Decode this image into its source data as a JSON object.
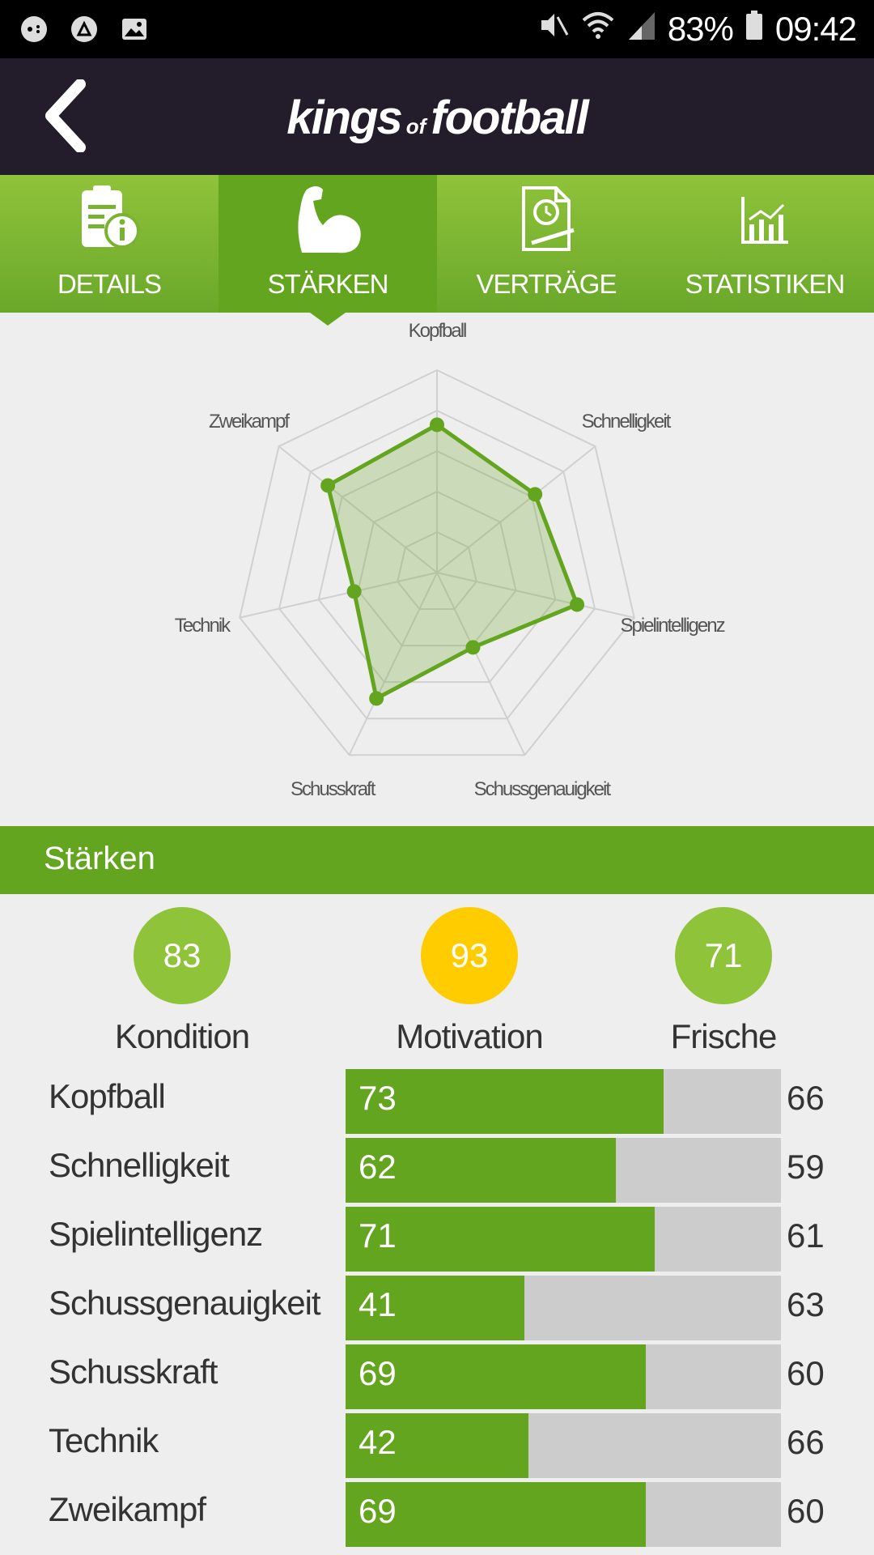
{
  "status_bar": {
    "battery": "83%",
    "time": "09:42",
    "icons": [
      "gamepad-icon",
      "soccer-icon",
      "image-icon",
      "mute-icon",
      "wifi-icon",
      "signal-icon",
      "battery-icon"
    ]
  },
  "header": {
    "logo_part1": "kings",
    "logo_part2": "of",
    "logo_part3": "football",
    "back_icon": "chevron-left-icon"
  },
  "tabs": [
    {
      "label": "DETAILS",
      "icon": "document-info-icon",
      "active": false
    },
    {
      "label": "STÄRKEN",
      "icon": "flexed-arm-icon",
      "active": true
    },
    {
      "label": "VERTRÄGE",
      "icon": "contract-icon",
      "active": false
    },
    {
      "label": "STATISTIKEN",
      "icon": "chart-icon",
      "active": false
    }
  ],
  "radar": {
    "labels": [
      "Kopfball",
      "Schnelligkeit",
      "Spielintelligenz",
      "Schussgenauigkeit",
      "Schusskraft",
      "Technik",
      "Zweikampf"
    ],
    "values": [
      73,
      62,
      71,
      41,
      69,
      42,
      69
    ],
    "max": 100,
    "colors": {
      "fill": "#64a51f",
      "grid": "#d0d0d0"
    }
  },
  "section": {
    "title": "Stärken"
  },
  "summary": [
    {
      "value": "83",
      "label": "Kondition",
      "color": "#8fc33a"
    },
    {
      "value": "93",
      "label": "Motivation",
      "color": "#ffcc00"
    },
    {
      "value": "71",
      "label": "Frische",
      "color": "#8fc33a"
    }
  ],
  "attributes": [
    {
      "name": "Kopfball",
      "value": 73,
      "compare": "66"
    },
    {
      "name": "Schnelligkeit",
      "value": 62,
      "compare": "59"
    },
    {
      "name": "Spielintelligenz",
      "value": 71,
      "compare": "61"
    },
    {
      "name": "Schussgenauigkeit",
      "value": 41,
      "compare": "63"
    },
    {
      "name": "Schusskraft",
      "value": 69,
      "compare": "60"
    },
    {
      "name": "Technik",
      "value": 42,
      "compare": "66"
    },
    {
      "name": "Zweikampf",
      "value": 69,
      "compare": "60"
    }
  ],
  "bar_scale_max": 100,
  "accent": "#64a51f"
}
